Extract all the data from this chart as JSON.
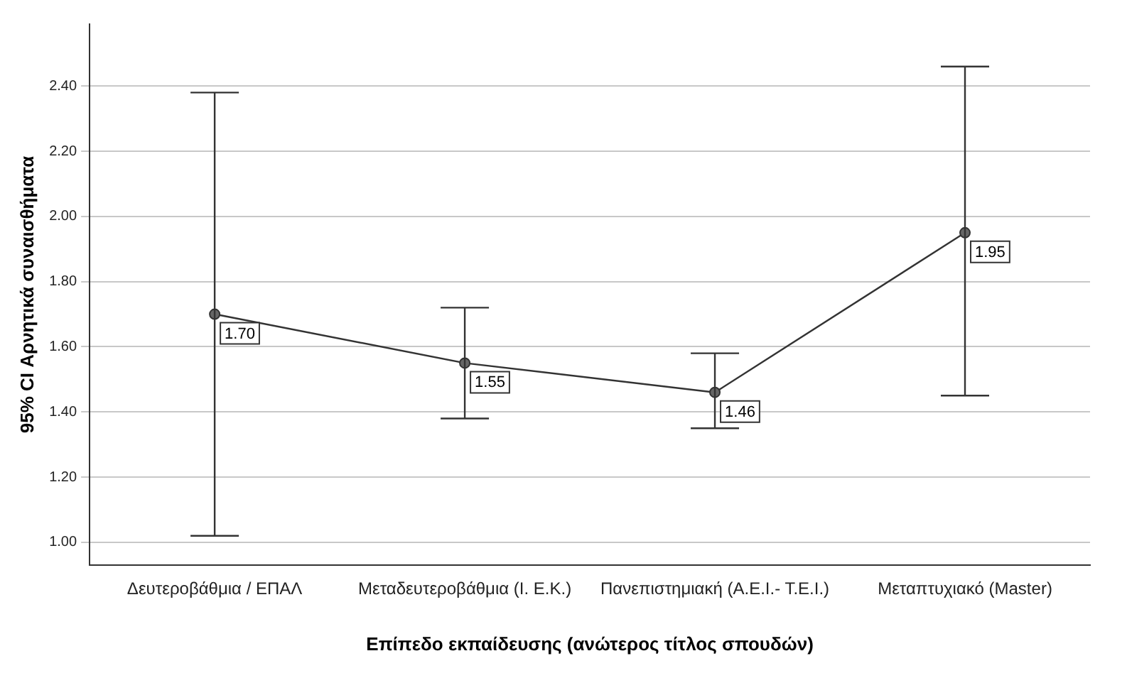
{
  "chart_data": {
    "type": "line",
    "xlabel": "Επίπεδο εκπαίδευσης (ανώτερος τίτλος σπουδών)",
    "ylabel": "95% CI Αρνητικά συναισθήματα",
    "categories": [
      "Δευτεροβάθμια / ΕΠΑΛ",
      "Μεταδευτεροβάθμια (Ι. Ε.Κ.)",
      "Πανεπιστημιακή (Α.Ε.Ι.- Τ.Ε.Ι.)",
      "Μεταπτυχιακό (Master)"
    ],
    "series": [
      {
        "color": "#333333",
        "values": [
          1.7,
          1.55,
          1.46,
          1.95
        ],
        "value_labels": [
          "1.70",
          "1.55",
          "1.46",
          "1.95"
        ],
        "errors": [
          [
            1.02,
            2.38
          ],
          [
            1.38,
            1.72
          ],
          [
            1.35,
            1.58
          ],
          [
            1.45,
            2.46
          ]
        ]
      }
    ],
    "ylim": [
      0.93,
      2.59
    ],
    "yticks": [
      {
        "value": 1,
        "label": "1.00"
      },
      {
        "value": 1.2,
        "label": "1.20"
      },
      {
        "value": 1.4,
        "label": "1.40"
      },
      {
        "value": 1.6,
        "label": "1.60"
      },
      {
        "value": 1.8,
        "label": "1.80"
      },
      {
        "value": 2,
        "label": "2.00"
      },
      {
        "value": 2.2,
        "label": "2.20"
      },
      {
        "value": 2.4,
        "label": "2.40"
      }
    ],
    "grid": "y",
    "legend": false,
    "marker": "circle",
    "line_style": "solid"
  }
}
